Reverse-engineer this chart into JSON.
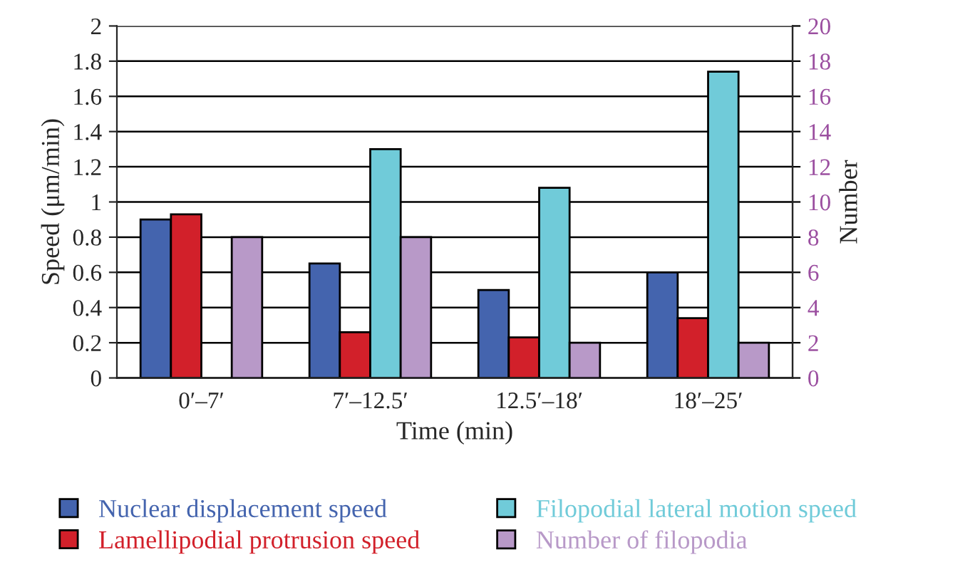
{
  "chart_data": {
    "type": "bar",
    "xlabel": "Time (min)",
    "ylabel": "Speed (μm/min)",
    "y2label": "Number",
    "categories": [
      "0′–7′",
      "7′–12.5′",
      "12.5′–18′",
      "18′–25′"
    ],
    "series": [
      {
        "name": "Nuclear displacement speed",
        "color": "#4464ae",
        "values": [
          0.9,
          0.65,
          0.5,
          0.6
        ]
      },
      {
        "name": "Lamellipodial protrusion speed",
        "color": "#d2202a",
        "values": [
          0.93,
          0.26,
          0.23,
          0.34
        ]
      },
      {
        "name": "Filopodial lateral motion speed",
        "color": "#70cbd9",
        "values": [
          null,
          1.3,
          1.08,
          1.74
        ]
      },
      {
        "name": "Number of filopodia",
        "color": "#b899c8",
        "values": [
          8,
          8,
          2,
          2
        ],
        "axis": "y2"
      }
    ],
    "ylim": [
      0,
      2
    ],
    "yticks": [
      0,
      0.2,
      0.4,
      0.6,
      0.8,
      1,
      1.2,
      1.4,
      1.6,
      1.8,
      2
    ],
    "y2lim": [
      0,
      20
    ],
    "y2ticks": [
      0,
      2,
      4,
      6,
      8,
      10,
      12,
      14,
      16,
      18,
      20
    ],
    "grid": "y",
    "legend": "bottom"
  }
}
